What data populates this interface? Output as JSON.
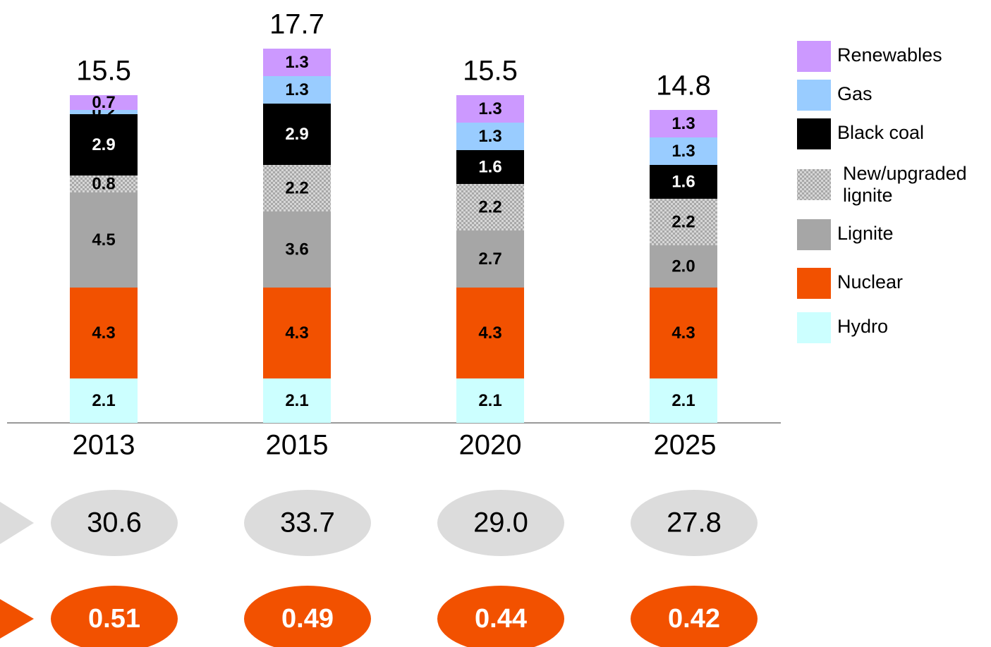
{
  "chart_data": {
    "type": "stacked_bar",
    "categories": [
      "2013",
      "2015",
      "2020",
      "2025"
    ],
    "ylim": [
      0,
      20
    ],
    "totals": [
      15.5,
      17.7,
      15.5,
      14.8
    ],
    "series": [
      {
        "name": "Hydro",
        "color": "#ccffff",
        "values": [
          2.1,
          2.1,
          2.1,
          2.1
        ]
      },
      {
        "name": "Nuclear",
        "color": "#f25100",
        "values": [
          4.3,
          4.3,
          4.3,
          4.3
        ]
      },
      {
        "name": "Lignite",
        "color": "#a6a6a6",
        "values": [
          4.5,
          3.6,
          2.7,
          2.0
        ],
        "value_labels": [
          "4.5",
          "3.6",
          "2.7",
          "2.0"
        ]
      },
      {
        "name": "New/upgraded lignite",
        "color": "#c4c4c4",
        "pattern": "checker",
        "values": [
          0.8,
          2.2,
          2.2,
          2.2
        ]
      },
      {
        "name": "Black coal",
        "color": "#000000",
        "values": [
          2.9,
          2.9,
          1.6,
          1.6
        ]
      },
      {
        "name": "Gas",
        "color": "#99ccff",
        "values": [
          0.2,
          1.3,
          1.3,
          1.3
        ]
      },
      {
        "name": "Renewables",
        "color": "#cc99ff",
        "values": [
          0.7,
          1.3,
          1.3,
          1.3
        ]
      }
    ],
    "ellipse_rows": [
      {
        "color": "#dcdcdc",
        "values": [
          30.6,
          33.7,
          29.0,
          27.8
        ],
        "value_labels": [
          "30.6",
          "33.7",
          "29.0",
          "27.8"
        ]
      },
      {
        "color": "#f25100",
        "values": [
          0.51,
          0.49,
          0.44,
          0.42
        ],
        "value_labels": [
          "0.51",
          "0.49",
          "0.44",
          "0.42"
        ]
      }
    ]
  }
}
